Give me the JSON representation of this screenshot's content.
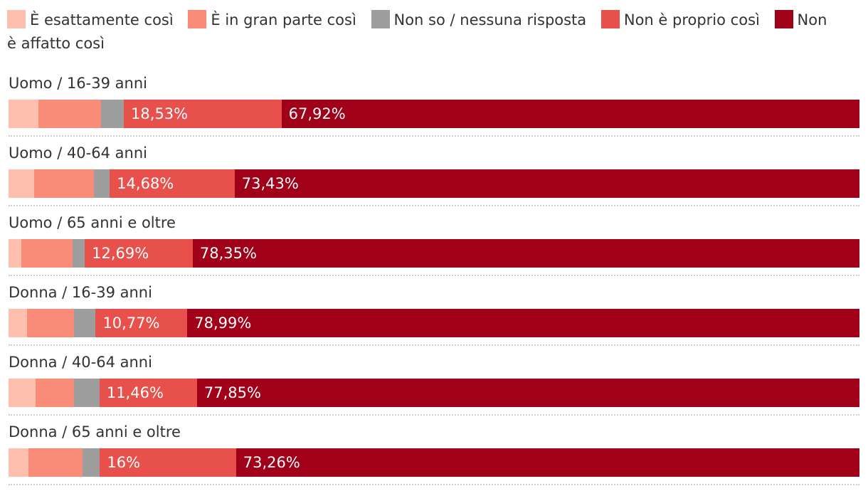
{
  "chart_data": {
    "type": "bar",
    "orientation": "horizontal",
    "stacked": true,
    "normalized": true,
    "legend_position": "top",
    "legend": [
      {
        "name": "È esattamente così",
        "color": "#ffbfae"
      },
      {
        "name": "È in gran parte così",
        "color": "#fa8c7a"
      },
      {
        "name": "Non so / nessuna risposta",
        "color": "#9e9e9e"
      },
      {
        "name": "Non è proprio così",
        "color": "#e8504c"
      },
      {
        "name": "Non è affatto così",
        "color": "#a00018"
      }
    ],
    "categories": [
      "Uomo / 16-39 anni",
      "Uomo / 40-64 anni",
      "Uomo / 65 anni e oltre",
      "Donna / 16-39 anni",
      "Donna / 40-64 anni",
      "Donna / 65 anni e oltre"
    ],
    "series": [
      {
        "name": "È esattamente così",
        "values": [
          3.5,
          3.0,
          1.5,
          2.2,
          3.2,
          2.3
        ]
      },
      {
        "name": "È in gran parte così",
        "values": [
          7.4,
          7.0,
          6.0,
          5.5,
          4.5,
          6.4
        ]
      },
      {
        "name": "Non so / nessuna risposta",
        "values": [
          2.65,
          1.89,
          1.46,
          2.54,
          2.99,
          2.04
        ]
      },
      {
        "name": "Non è proprio così",
        "values": [
          18.53,
          14.68,
          12.69,
          10.77,
          11.46,
          16
        ],
        "labels": [
          "18,53%",
          "14,68%",
          "12,69%",
          "10,77%",
          "11,46%",
          "16%"
        ]
      },
      {
        "name": "Non è affatto così",
        "values": [
          67.92,
          73.43,
          78.35,
          78.99,
          77.85,
          73.26
        ],
        "labels": [
          "67,92%",
          "73,43%",
          "78,35%",
          "78,99%",
          "77,85%",
          "73,26%"
        ]
      }
    ]
  }
}
